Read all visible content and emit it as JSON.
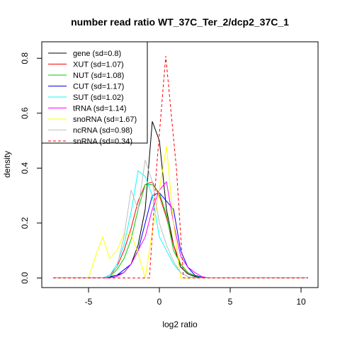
{
  "chart_data": {
    "type": "line",
    "title": "number read ratio WT_37C_Ter_2/dcp2_37C_1",
    "xlabel": "log2 ratio",
    "ylabel": "density",
    "xlim": [
      -8.3,
      11.2
    ],
    "ylim": [
      -0.035,
      0.86
    ],
    "xticks": [
      -5,
      0,
      5,
      10
    ],
    "yticks": [
      0.0,
      0.2,
      0.4,
      0.6,
      0.8
    ],
    "grid": false,
    "legend_position": "top-left",
    "series": [
      {
        "name": "gene (sd=0.8)",
        "color": "#000000",
        "dash": false,
        "points": [
          [
            -7.5,
            0.0
          ],
          [
            -4.0,
            0.0
          ],
          [
            -3.5,
            0.003
          ],
          [
            -3.0,
            0.01
          ],
          [
            -2.5,
            0.02
          ],
          [
            -2.0,
            0.05
          ],
          [
            -1.5,
            0.12
          ],
          [
            -1.0,
            0.25
          ],
          [
            -0.5,
            0.57
          ],
          [
            0.0,
            0.5
          ],
          [
            0.5,
            0.25
          ],
          [
            1.0,
            0.12
          ],
          [
            1.5,
            0.04
          ],
          [
            2.0,
            0.015
          ],
          [
            2.5,
            0.005
          ],
          [
            3.0,
            0.0
          ],
          [
            10.5,
            0.0
          ]
        ]
      },
      {
        "name": "XUT (sd=1.07)",
        "color": "#ff0000",
        "dash": false,
        "points": [
          [
            -7.5,
            0.0
          ],
          [
            -4.0,
            0.0
          ],
          [
            -3.5,
            0.01
          ],
          [
            -3.0,
            0.04
          ],
          [
            -2.5,
            0.1
          ],
          [
            -2.0,
            0.18
          ],
          [
            -1.5,
            0.28
          ],
          [
            -1.0,
            0.34
          ],
          [
            -0.5,
            0.35
          ],
          [
            0.0,
            0.3
          ],
          [
            0.5,
            0.22
          ],
          [
            1.0,
            0.12
          ],
          [
            1.5,
            0.05
          ],
          [
            2.0,
            0.02
          ],
          [
            2.5,
            0.008
          ],
          [
            3.0,
            0.0
          ],
          [
            10.5,
            0.0
          ]
        ]
      },
      {
        "name": "NUT (sd=1.08)",
        "color": "#00cc00",
        "dash": false,
        "points": [
          [
            -7.5,
            0.0
          ],
          [
            -4.0,
            0.0
          ],
          [
            -3.5,
            0.005
          ],
          [
            -3.0,
            0.03
          ],
          [
            -2.5,
            0.07
          ],
          [
            -2.0,
            0.14
          ],
          [
            -1.5,
            0.25
          ],
          [
            -1.0,
            0.34
          ],
          [
            -0.5,
            0.34
          ],
          [
            0.0,
            0.31
          ],
          [
            0.5,
            0.23
          ],
          [
            1.0,
            0.1
          ],
          [
            1.5,
            0.05
          ],
          [
            2.0,
            0.02
          ],
          [
            2.5,
            0.008
          ],
          [
            3.0,
            0.0
          ],
          [
            10.5,
            0.0
          ]
        ]
      },
      {
        "name": "CUT (sd=1.17)",
        "color": "#0000ff",
        "dash": false,
        "points": [
          [
            -7.5,
            0.0
          ],
          [
            -4.0,
            0.0
          ],
          [
            -3.5,
            0.005
          ],
          [
            -3.0,
            0.01
          ],
          [
            -2.5,
            0.03
          ],
          [
            -2.0,
            0.05
          ],
          [
            -1.5,
            0.1
          ],
          [
            -1.0,
            0.2
          ],
          [
            -0.5,
            0.3
          ],
          [
            0.0,
            0.31
          ],
          [
            0.5,
            0.28
          ],
          [
            1.0,
            0.25
          ],
          [
            1.5,
            0.1
          ],
          [
            2.0,
            0.04
          ],
          [
            2.5,
            0.01
          ],
          [
            3.0,
            0.003
          ],
          [
            3.5,
            0.0
          ],
          [
            10.5,
            0.0
          ]
        ]
      },
      {
        "name": "SUT (sd=1.02)",
        "color": "#00ffff",
        "dash": false,
        "points": [
          [
            -7.5,
            0.0
          ],
          [
            -4.0,
            0.0
          ],
          [
            -3.5,
            0.01
          ],
          [
            -3.0,
            0.05
          ],
          [
            -2.5,
            0.12
          ],
          [
            -2.0,
            0.24
          ],
          [
            -1.5,
            0.39
          ],
          [
            -1.0,
            0.37
          ],
          [
            -0.5,
            0.3
          ],
          [
            0.0,
            0.15
          ],
          [
            0.5,
            0.1
          ],
          [
            1.0,
            0.05
          ],
          [
            1.5,
            0.02
          ],
          [
            2.0,
            0.005
          ],
          [
            2.5,
            0.0
          ],
          [
            10.5,
            0.0
          ]
        ]
      },
      {
        "name": "tRNA (sd=1.14)",
        "color": "#ff00ff",
        "dash": false,
        "points": [
          [
            -7.5,
            0.0
          ],
          [
            -4.0,
            0.0
          ],
          [
            -3.5,
            0.0
          ],
          [
            -3.0,
            0.005
          ],
          [
            -2.5,
            0.02
          ],
          [
            -2.0,
            0.05
          ],
          [
            -1.5,
            0.1
          ],
          [
            -1.0,
            0.15
          ],
          [
            -0.5,
            0.25
          ],
          [
            0.0,
            0.32
          ],
          [
            0.5,
            0.35
          ],
          [
            1.0,
            0.2
          ],
          [
            1.5,
            0.08
          ],
          [
            2.0,
            0.04
          ],
          [
            2.5,
            0.02
          ],
          [
            3.0,
            0.005
          ],
          [
            3.5,
            0.0
          ],
          [
            10.5,
            0.0
          ]
        ]
      },
      {
        "name": "snoRNA (sd=1.67)",
        "color": "#ffff00",
        "dash": false,
        "points": [
          [
            -7.5,
            0.0
          ],
          [
            -5.0,
            0.0
          ],
          [
            -4.5,
            0.08
          ],
          [
            -4.0,
            0.148
          ],
          [
            -3.5,
            0.07
          ],
          [
            -3.0,
            0.1
          ],
          [
            -2.5,
            0.16
          ],
          [
            -2.0,
            0.16
          ],
          [
            -1.5,
            0.09
          ],
          [
            -1.0,
            0.0
          ],
          [
            -0.5,
            0.17
          ],
          [
            0.0,
            0.32
          ],
          [
            0.5,
            0.48
          ],
          [
            1.0,
            0.2
          ],
          [
            1.5,
            0.0
          ],
          [
            10.5,
            0.0
          ]
        ]
      },
      {
        "name": "ncRNA (sd=0.98)",
        "color": "#bebebe",
        "dash": false,
        "points": [
          [
            -7.5,
            0.0
          ],
          [
            -4.0,
            0.0
          ],
          [
            -3.5,
            0.005
          ],
          [
            -3.0,
            0.04
          ],
          [
            -2.5,
            0.15
          ],
          [
            -2.0,
            0.32
          ],
          [
            -1.5,
            0.25
          ],
          [
            -1.0,
            0.43
          ],
          [
            -0.5,
            0.35
          ],
          [
            0.0,
            0.2
          ],
          [
            0.5,
            0.12
          ],
          [
            1.0,
            0.06
          ],
          [
            1.5,
            0.02
          ],
          [
            2.0,
            0.005
          ],
          [
            2.5,
            0.0
          ],
          [
            10.5,
            0.0
          ]
        ]
      },
      {
        "name": "snRNA (sd=0.34)",
        "color": "#ff0000",
        "dash": true,
        "points": [
          [
            -7.5,
            0.0
          ],
          [
            -0.7,
            0.0
          ],
          [
            -0.2,
            0.4
          ],
          [
            0.45,
            0.808
          ],
          [
            1.2,
            0.4
          ],
          [
            1.7,
            0.0
          ],
          [
            10.5,
            0.0
          ]
        ]
      }
    ]
  }
}
